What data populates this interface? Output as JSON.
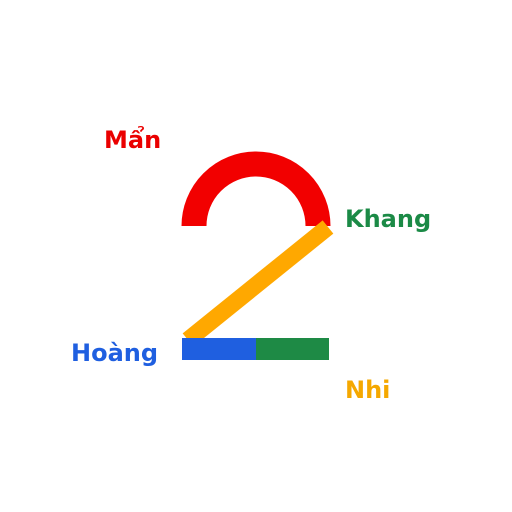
{
  "labels": {
    "top_left": {
      "text": "Mẩn",
      "color": "#EA0000"
    },
    "right": {
      "text": "Khang",
      "color": "#1B8A46"
    },
    "bottom_left": {
      "text": "Hoàng",
      "color": "#1F5FE0"
    },
    "bottom_right": {
      "text": "Nhi",
      "color": "#F5A800"
    }
  },
  "logo": {
    "glyph": "2",
    "colors": {
      "arc": "#F20000",
      "diagonal": "#FFA800",
      "base_left": "#1F5FE0",
      "base_right": "#1E8A45"
    }
  }
}
